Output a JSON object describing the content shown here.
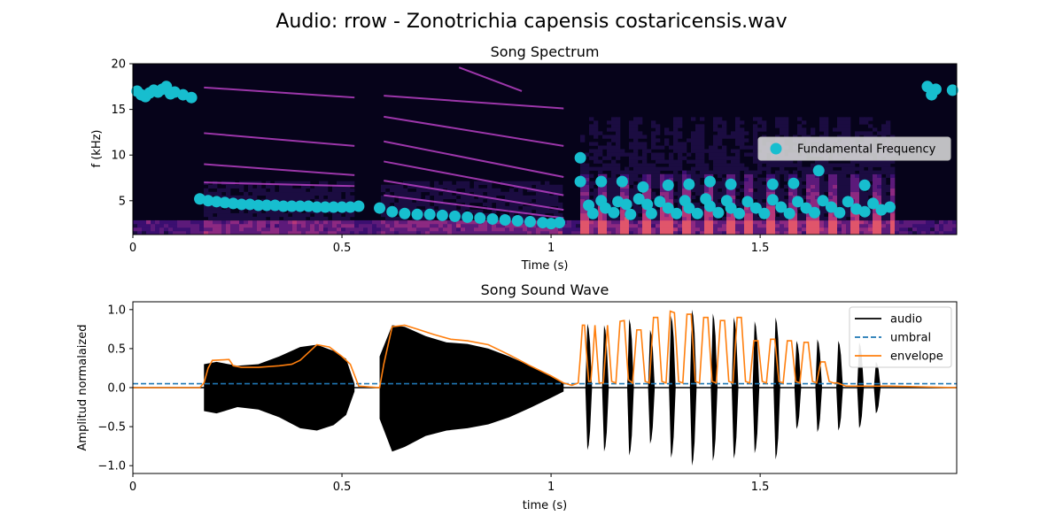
{
  "figure": {
    "suptitle": "Audio: rrow - Zonotrichia capensis costaricensis.wav"
  },
  "chart_data": [
    {
      "type": "heatmap",
      "title": "Song Spectrum",
      "xlabel": "Time (s)",
      "ylabel": "f (kHz)",
      "xlim": [
        0,
        1.97
      ],
      "ylim": [
        1.3,
        20
      ],
      "xticks": [
        0,
        0.5,
        1,
        1.5
      ],
      "xtick_labels": [
        "0",
        "0.5",
        "1",
        "1.5"
      ],
      "yticks": [
        5,
        10,
        15,
        20
      ],
      "ytick_labels": [
        "5",
        "10",
        "15",
        "20"
      ],
      "colormap": "magma",
      "legend_placement": "center-right",
      "harmonics": [
        {
          "t0": 0.17,
          "t1": 0.53,
          "f0": 17.4,
          "f1": 16.3
        },
        {
          "t0": 0.17,
          "t1": 0.53,
          "f0": 12.4,
          "f1": 11.0
        },
        {
          "t0": 0.17,
          "t1": 0.53,
          "f0": 9.0,
          "f1": 7.8
        },
        {
          "t0": 0.17,
          "t1": 0.53,
          "f0": 7.0,
          "f1": 6.6
        },
        {
          "t0": 0.6,
          "t1": 1.03,
          "f0": 16.5,
          "f1": 15.1
        },
        {
          "t0": 0.6,
          "t1": 1.03,
          "f0": 14.2,
          "f1": 11.0
        },
        {
          "t0": 0.6,
          "t1": 1.03,
          "f0": 11.5,
          "f1": 7.6
        },
        {
          "t0": 0.6,
          "t1": 1.03,
          "f0": 9.3,
          "f1": 5.6
        },
        {
          "t0": 0.6,
          "t1": 1.03,
          "f0": 7.2,
          "f1": 4.0
        },
        {
          "t0": 0.6,
          "t1": 1.03,
          "f0": 5.6,
          "f1": 3.1
        },
        {
          "t0": 0.78,
          "t1": 0.93,
          "f0": 19.6,
          "f1": 17.0
        }
      ],
      "series": [
        {
          "name": "Fundamental Frequency",
          "color": "#17becf",
          "marker": "circle",
          "x": [
            0.01,
            0.02,
            0.03,
            0.04,
            0.05,
            0.06,
            0.07,
            0.08,
            0.09,
            0.1,
            0.12,
            0.14,
            0.16,
            0.18,
            0.2,
            0.22,
            0.24,
            0.26,
            0.28,
            0.3,
            0.32,
            0.34,
            0.36,
            0.38,
            0.4,
            0.42,
            0.44,
            0.46,
            0.48,
            0.5,
            0.52,
            0.54,
            0.59,
            0.62,
            0.65,
            0.68,
            0.71,
            0.74,
            0.77,
            0.8,
            0.83,
            0.86,
            0.89,
            0.92,
            0.95,
            0.98,
            1.0,
            1.02,
            1.07,
            1.07,
            1.09,
            1.1,
            1.12,
            1.13,
            1.15,
            1.16,
            1.18,
            1.19,
            1.21,
            1.23,
            1.24,
            1.26,
            1.28,
            1.3,
            1.32,
            1.33,
            1.35,
            1.37,
            1.38,
            1.4,
            1.42,
            1.43,
            1.45,
            1.47,
            1.49,
            1.51,
            1.53,
            1.55,
            1.57,
            1.59,
            1.61,
            1.63,
            1.65,
            1.67,
            1.69,
            1.71,
            1.73,
            1.75,
            1.77,
            1.79,
            1.81,
            1.12,
            1.17,
            1.22,
            1.28,
            1.33,
            1.38,
            1.43,
            1.53,
            1.58,
            1.64,
            1.75,
            1.9,
            1.91,
            1.92,
            1.96
          ],
          "y": [
            17.0,
            16.6,
            16.4,
            16.8,
            17.1,
            16.9,
            17.2,
            17.5,
            16.7,
            16.9,
            16.6,
            16.3,
            5.2,
            5.0,
            4.9,
            4.8,
            4.7,
            4.6,
            4.6,
            4.5,
            4.5,
            4.5,
            4.4,
            4.4,
            4.4,
            4.4,
            4.3,
            4.3,
            4.3,
            4.3,
            4.3,
            4.4,
            4.2,
            3.8,
            3.6,
            3.5,
            3.5,
            3.4,
            3.3,
            3.2,
            3.1,
            3.0,
            2.9,
            2.8,
            2.7,
            2.6,
            2.5,
            2.6,
            9.7,
            7.1,
            4.5,
            3.6,
            5.0,
            4.2,
            3.7,
            4.9,
            4.6,
            3.5,
            5.2,
            4.6,
            3.6,
            4.9,
            4.2,
            3.6,
            5.0,
            4.2,
            3.6,
            5.2,
            4.4,
            3.7,
            5.0,
            4.2,
            3.6,
            4.9,
            4.2,
            3.6,
            5.1,
            4.3,
            3.6,
            4.9,
            4.2,
            3.7,
            5.0,
            4.3,
            3.7,
            4.9,
            4.1,
            3.8,
            4.7,
            4.0,
            4.3,
            7.1,
            7.1,
            6.5,
            6.7,
            6.8,
            7.1,
            6.8,
            6.8,
            6.9,
            8.3,
            6.7,
            17.5,
            16.6,
            17.2,
            17.1
          ]
        }
      ]
    },
    {
      "type": "line",
      "title": "Song Sound Wave",
      "xlabel": "time (s)",
      "ylabel": "Amplitud normalaized",
      "xlim": [
        0,
        1.97
      ],
      "ylim": [
        -1.1,
        1.1
      ],
      "xticks": [
        0,
        0.5,
        1,
        1.5
      ],
      "xtick_labels": [
        "0",
        "0.5",
        "1",
        "1.5"
      ],
      "yticks": [
        -1.0,
        -0.5,
        0.0,
        0.5,
        1.0
      ],
      "ytick_labels": [
        "−1.0",
        "−0.5",
        "0.0",
        "0.5",
        "1.0"
      ],
      "legend_placement": "top-right",
      "threshold": 0.05,
      "syllables": [
        {
          "center": 1.09,
          "width": 0.016,
          "peak": 0.82,
          "trough": -0.8
        },
        {
          "center": 1.13,
          "width": 0.016,
          "peak": 0.8,
          "trough": -0.82
        },
        {
          "center": 1.19,
          "width": 0.016,
          "peak": 0.88,
          "trough": -0.87
        },
        {
          "center": 1.24,
          "width": 0.016,
          "peak": 0.74,
          "trough": -0.72
        },
        {
          "center": 1.29,
          "width": 0.016,
          "peak": 0.92,
          "trough": -0.9
        },
        {
          "center": 1.34,
          "width": 0.016,
          "peak": 1.0,
          "trough": -1.0
        },
        {
          "center": 1.39,
          "width": 0.016,
          "peak": 0.95,
          "trough": -0.94
        },
        {
          "center": 1.44,
          "width": 0.016,
          "peak": 0.9,
          "trough": -0.91
        },
        {
          "center": 1.49,
          "width": 0.016,
          "peak": 0.85,
          "trough": -0.84
        },
        {
          "center": 1.54,
          "width": 0.016,
          "peak": 0.9,
          "trough": -0.92
        },
        {
          "center": 1.59,
          "width": 0.016,
          "peak": 0.6,
          "trough": -0.53
        },
        {
          "center": 1.64,
          "width": 0.016,
          "peak": 0.62,
          "trough": -0.57
        },
        {
          "center": 1.69,
          "width": 0.016,
          "peak": 0.6,
          "trough": -0.55
        },
        {
          "center": 1.74,
          "width": 0.016,
          "peak": 0.58,
          "trough": -0.52
        },
        {
          "center": 1.78,
          "width": 0.016,
          "peak": 0.33,
          "trough": -0.33
        }
      ],
      "series": [
        {
          "name": "audio",
          "color": "#000000",
          "style": "solid",
          "segments": [
            {
              "x": [
                0.17,
                0.2,
                0.25,
                0.3,
                0.35,
                0.4,
                0.44,
                0.48,
                0.51,
                0.53
              ],
              "y": [
                0.3,
                0.33,
                0.28,
                0.3,
                0.4,
                0.52,
                0.55,
                0.47,
                0.37,
                0.05
              ],
              "y_neg": [
                -0.3,
                -0.33,
                -0.25,
                -0.28,
                -0.38,
                -0.52,
                -0.55,
                -0.48,
                -0.35,
                -0.05
              ]
            },
            {
              "x": [
                0.59,
                0.62,
                0.65,
                0.7,
                0.75,
                0.8,
                0.85,
                0.9,
                0.95,
                1.0,
                1.03
              ],
              "y": [
                0.4,
                0.8,
                0.78,
                0.66,
                0.58,
                0.56,
                0.5,
                0.4,
                0.28,
                0.15,
                0.05
              ],
              "y_neg": [
                -0.4,
                -0.82,
                -0.76,
                -0.62,
                -0.55,
                -0.52,
                -0.47,
                -0.38,
                -0.26,
                -0.13,
                -0.05
              ]
            }
          ]
        },
        {
          "name": "umbral",
          "color": "#1f77b4",
          "style": "dashed",
          "y": 0.05
        },
        {
          "name": "envelope",
          "color": "#ff7f0e",
          "style": "solid",
          "x": [
            0.0,
            0.16,
            0.17,
            0.18,
            0.19,
            0.23,
            0.24,
            0.26,
            0.3,
            0.35,
            0.38,
            0.4,
            0.42,
            0.44,
            0.47,
            0.5,
            0.52,
            0.54,
            0.59,
            0.6,
            0.62,
            0.65,
            0.68,
            0.72,
            0.76,
            0.8,
            0.85,
            0.9,
            0.95,
            1.0,
            1.03,
            1.05,
            1.065,
            1.07,
            1.075,
            1.08,
            1.085,
            1.09,
            1.095,
            1.1,
            1.105,
            1.115,
            1.125,
            1.135,
            1.145,
            1.155,
            1.165,
            1.175,
            1.185,
            1.195,
            1.205,
            1.215,
            1.225,
            1.235,
            1.245,
            1.255,
            1.265,
            1.275,
            1.285,
            1.295,
            1.305,
            1.315,
            1.325,
            1.335,
            1.345,
            1.355,
            1.365,
            1.375,
            1.385,
            1.395,
            1.405,
            1.415,
            1.425,
            1.435,
            1.445,
            1.455,
            1.465,
            1.475,
            1.485,
            1.495,
            1.505,
            1.515,
            1.525,
            1.535,
            1.545,
            1.555,
            1.565,
            1.575,
            1.585,
            1.595,
            1.605,
            1.615,
            1.625,
            1.635,
            1.645,
            1.655,
            1.665,
            1.675,
            1.685,
            1.695,
            1.705,
            1.715,
            1.725,
            1.735,
            1.745,
            1.755,
            1.765,
            1.775,
            1.785,
            1.795,
            1.81,
            1.97
          ],
          "y": [
            0.0,
            0.0,
            0.06,
            0.25,
            0.35,
            0.36,
            0.28,
            0.26,
            0.26,
            0.28,
            0.3,
            0.35,
            0.45,
            0.55,
            0.52,
            0.4,
            0.3,
            0.02,
            0.0,
            0.3,
            0.78,
            0.8,
            0.75,
            0.68,
            0.62,
            0.6,
            0.55,
            0.42,
            0.28,
            0.15,
            0.06,
            0.03,
            0.06,
            0.4,
            0.8,
            0.8,
            0.42,
            0.08,
            0.08,
            0.4,
            0.8,
            0.06,
            0.06,
            0.8,
            0.08,
            0.06,
            0.85,
            0.86,
            0.1,
            0.06,
            0.74,
            0.74,
            0.08,
            0.06,
            0.9,
            0.9,
            0.08,
            0.06,
            0.98,
            0.96,
            0.08,
            0.06,
            0.94,
            0.94,
            0.08,
            0.06,
            0.9,
            0.9,
            0.08,
            0.06,
            0.86,
            0.86,
            0.08,
            0.06,
            0.9,
            0.9,
            0.08,
            0.06,
            0.6,
            0.6,
            0.08,
            0.06,
            0.62,
            0.62,
            0.08,
            0.06,
            0.6,
            0.6,
            0.08,
            0.06,
            0.58,
            0.58,
            0.08,
            0.06,
            0.33,
            0.33,
            0.08,
            0.06,
            0.06,
            0.04,
            0.02,
            0.02,
            0.02,
            0.02,
            0.02,
            0.02,
            0.02,
            0.02,
            0.02,
            0.02,
            0.02,
            0.0
          ]
        }
      ]
    }
  ]
}
